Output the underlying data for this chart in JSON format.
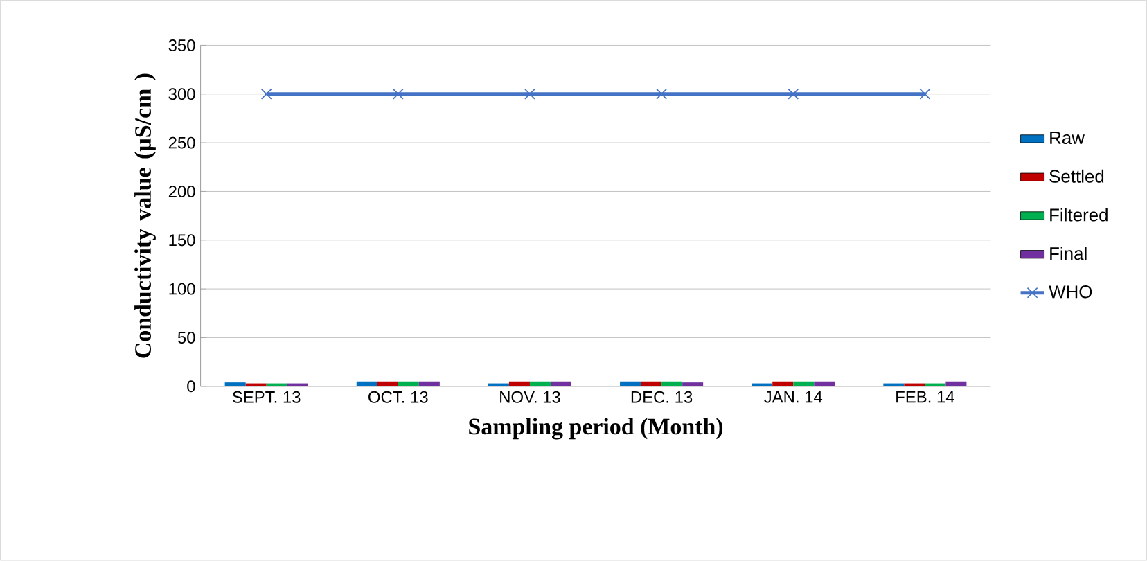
{
  "chart_data": {
    "type": "bar",
    "xlabel": "Sampling period (Month)",
    "ylabel": "Conductivity value (µS/cm )",
    "categories": [
      "SEPT. 13",
      "OCT. 13",
      "NOV. 13",
      "DEC. 13",
      "JAN. 14",
      "FEB. 14"
    ],
    "ylim": [
      0,
      350
    ],
    "yticks": [
      0,
      50,
      100,
      150,
      200,
      250,
      300,
      350
    ],
    "grid": "y",
    "legend": "right",
    "series": [
      {
        "name": "Raw",
        "color": "#0070c0",
        "values": [
          4,
          5,
          3,
          5,
          3,
          3
        ]
      },
      {
        "name": "Settled",
        "color": "#c00000",
        "values": [
          3,
          5,
          5,
          5,
          5,
          3
        ]
      },
      {
        "name": "Filtered",
        "color": "#00b050",
        "values": [
          3,
          5,
          5,
          5,
          5,
          3
        ]
      },
      {
        "name": "Final",
        "color": "#7030a0",
        "values": [
          3,
          5,
          5,
          4,
          5,
          5
        ]
      },
      {
        "name": "WHO",
        "color": "#4472c4",
        "type": "line",
        "marker": "cross",
        "values": [
          300,
          300,
          300,
          300,
          300,
          300
        ]
      }
    ]
  }
}
